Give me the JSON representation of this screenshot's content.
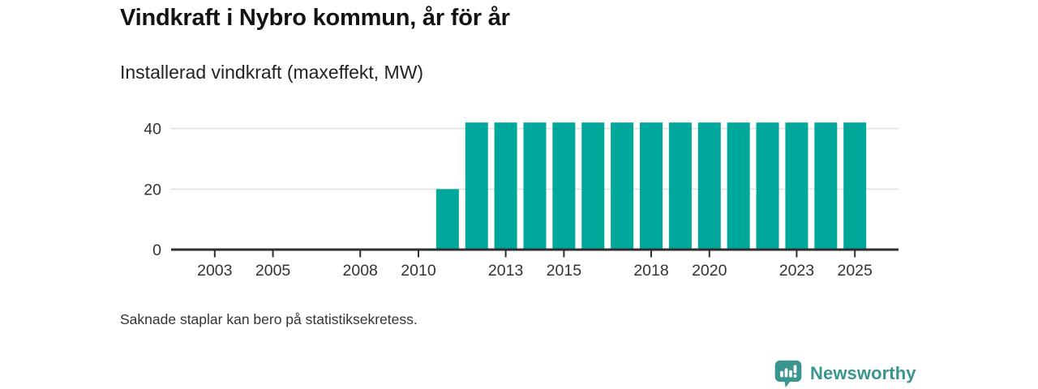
{
  "chart_data": {
    "type": "bar",
    "title": "Vindkraft i Nybro kommun, år för år",
    "subtitle": "Installerad vindkraft (maxeffekt, MW)",
    "ylabel": "",
    "xlabel": "",
    "years": [
      2002,
      2003,
      2004,
      2005,
      2006,
      2007,
      2008,
      2009,
      2010,
      2011,
      2012,
      2013,
      2014,
      2015,
      2016,
      2017,
      2018,
      2019,
      2020,
      2021,
      2022,
      2023,
      2024,
      2025,
      2026
    ],
    "values": [
      null,
      null,
      null,
      null,
      null,
      null,
      null,
      null,
      null,
      20,
      42,
      42,
      42,
      42,
      42,
      42,
      42,
      42,
      42,
      42,
      42,
      42,
      42,
      42,
      null
    ],
    "ylim": [
      0,
      45
    ],
    "yticks": [
      0,
      20,
      40
    ],
    "xticks": [
      2003,
      2005,
      2008,
      2010,
      2013,
      2015,
      2018,
      2020,
      2023,
      2025
    ],
    "grid": "horizontal-only",
    "legend": "none",
    "bar_color": "#00a79b",
    "grid_color": "#e0e0e0",
    "axis_color": "#2f2f2f",
    "label_color": "#333333"
  },
  "footer": {
    "note": "Saknade staplar kan bero på statistiksekretess."
  },
  "branding": {
    "name": "Newsworthy",
    "icon": "newsworthy-speech-bubble-bar-chart-icon",
    "color": "#3a958f"
  }
}
